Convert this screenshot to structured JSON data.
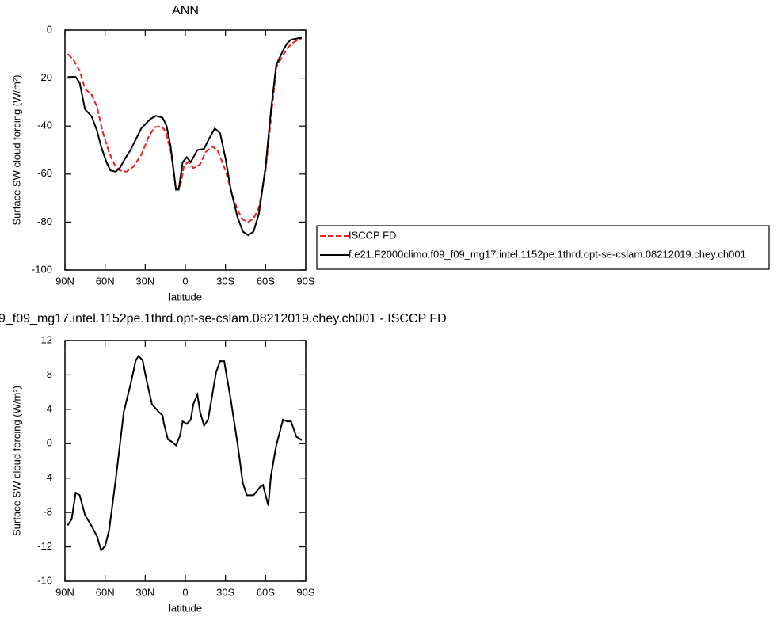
{
  "chart_data": [
    {
      "type": "line",
      "title": "ANN",
      "xlabel": "latitude",
      "ylabel": "Surface SW cloud forcing (W/m²)",
      "xlim": [
        90,
        -90
      ],
      "xticks": [
        {
          "value": 90,
          "label": "90N"
        },
        {
          "value": 60,
          "label": "60N"
        },
        {
          "value": 30,
          "label": "30N"
        },
        0,
        {
          "value": -30,
          "label": "30S"
        },
        {
          "value": -60,
          "label": "60S"
        },
        {
          "value": -90,
          "label": "90S"
        }
      ],
      "ylim": [
        -100,
        0
      ],
      "yticks": [
        0,
        -20,
        -40,
        -60,
        -80,
        -100
      ],
      "series": [
        {
          "name": "ISCCP FD",
          "color": "#e8221e",
          "dash": "dashed",
          "x": [
            88,
            84,
            79,
            75,
            70,
            66,
            62,
            57,
            53,
            49,
            44,
            39,
            33,
            27,
            23,
            18,
            15,
            11,
            7,
            4,
            1,
            -2,
            -6,
            -11,
            -15,
            -20,
            -24,
            -30,
            -34,
            -39,
            -43,
            -47,
            -51,
            -55,
            -60,
            -64,
            -68,
            -73,
            -77,
            -81,
            -87
          ],
          "values": [
            -10,
            -12,
            -17,
            -24.5,
            -27,
            -32,
            -42,
            -51,
            -56,
            -58.5,
            -59,
            -57,
            -52,
            -44,
            -40.5,
            -40,
            -42,
            -50,
            -66.5,
            -66,
            -56.5,
            -55,
            -57.5,
            -56,
            -51,
            -48.5,
            -50,
            -58.5,
            -66.5,
            -75,
            -79,
            -80,
            -78.5,
            -74,
            -58.5,
            -37,
            -15.5,
            -10.5,
            -7,
            -5,
            -3.3
          ]
        },
        {
          "name": "f.e21.F2000climo.f09_f09_mg17.intel.1152pe.1thrd.opt-se-cslam.08212019.chey.ch001",
          "color": "#000000",
          "dash": "solid",
          "x": [
            88,
            82,
            79,
            75,
            70,
            66,
            63,
            59,
            56,
            52,
            49,
            45,
            41,
            33,
            26,
            22,
            17,
            14,
            11,
            7,
            5,
            2,
            -1,
            -4,
            -9,
            -14,
            -18,
            -22,
            -26,
            -30,
            -34,
            -39,
            -43,
            -47,
            -51,
            -55,
            -60,
            -64,
            -68,
            -73,
            -76,
            -79,
            -85,
            -87
          ],
          "values": [
            -19.5,
            -19.5,
            -22,
            -33,
            -36,
            -42,
            -48.5,
            -55,
            -58.5,
            -59,
            -57.5,
            -53.5,
            -50,
            -41,
            -37,
            -35.7,
            -36.5,
            -40,
            -48.5,
            -66.5,
            -66.5,
            -55,
            -53,
            -55,
            -50,
            -49.5,
            -45,
            -41,
            -43,
            -53.5,
            -66.5,
            -78,
            -84,
            -85.5,
            -84,
            -76.5,
            -57,
            -33.5,
            -14.5,
            -8.5,
            -5.5,
            -4,
            -3.3,
            -3.3
          ]
        }
      ]
    },
    {
      "type": "line",
      "title": "9_f09_mg17.intel.1152pe.1thrd.opt-se-cslam.08212019.chey.ch001 - ISCCP FD",
      "xlabel": "latitude",
      "ylabel": "Surface SW cloud forcing (W/m²)",
      "xlim": [
        90,
        -90
      ],
      "xticks": [
        {
          "value": 90,
          "label": "90N"
        },
        {
          "value": 60,
          "label": "60N"
        },
        {
          "value": 30,
          "label": "30N"
        },
        0,
        {
          "value": -30,
          "label": "30S"
        },
        {
          "value": -60,
          "label": "60S"
        },
        {
          "value": -90,
          "label": "90S"
        }
      ],
      "ylim": [
        -16,
        12
      ],
      "yticks": [
        12,
        8,
        4,
        0,
        -4,
        -8,
        -12,
        -16
      ],
      "color": "#000000",
      "x": [
        88,
        85,
        82,
        79,
        75,
        70,
        66,
        63,
        60,
        57,
        52,
        46,
        41,
        37,
        35,
        32,
        29,
        25,
        20,
        17,
        16,
        13,
        10,
        7,
        4,
        2,
        -1,
        -4,
        -6,
        -9,
        -11,
        -14,
        -17,
        -23,
        -26,
        -29,
        -34,
        -39,
        -43,
        -46,
        -51,
        -56,
        -58,
        -62,
        -64,
        -68,
        -73,
        -76,
        -79,
        -83,
        -87
      ],
      "values": [
        -9.5,
        -8.8,
        -5.7,
        -6,
        -8.3,
        -9.6,
        -10.8,
        -12.4,
        -11.9,
        -10.1,
        -4.1,
        3.7,
        6.9,
        9.7,
        10.2,
        9.7,
        7.4,
        4.6,
        3.7,
        3.3,
        2.3,
        0.5,
        0.2,
        -0.2,
        0.9,
        2.6,
        2.3,
        2.8,
        4.6,
        5.7,
        3.7,
        2.1,
        2.8,
        8.3,
        9.6,
        9.6,
        5.1,
        0,
        -4.6,
        -6,
        -6,
        -5,
        -4.8,
        -7.2,
        -3.7,
        -0.2,
        2.8,
        2.6,
        2.6,
        0.8,
        0.4
      ]
    }
  ]
}
